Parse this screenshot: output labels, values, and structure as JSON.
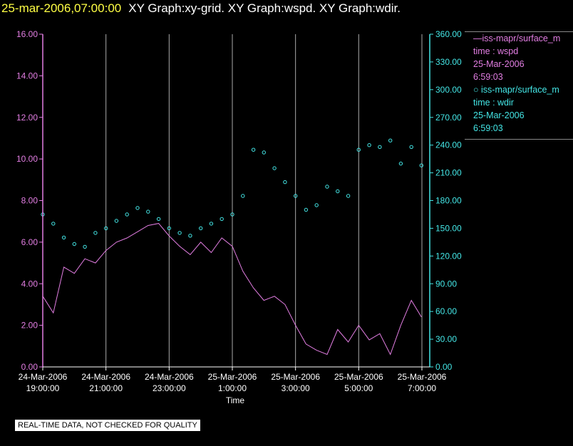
{
  "header": {
    "time": "25-mar-2006,07:00:00",
    "graphs": "XY Graph:xy-grid.  XY Graph:wspd.  XY Graph:wdir."
  },
  "colors": {
    "wspd": "#e37ee3",
    "wdir": "#44e6e6",
    "grid": "#aaaaaa",
    "background": "#000000"
  },
  "legend": {
    "wspd": {
      "series": "iss-mapr/surface_m",
      "field": "time : wspd",
      "date": "25-Mar-2006",
      "time": "6:59:03"
    },
    "wdir": {
      "series": "iss-mapr/surface_m",
      "field": "time : wdir",
      "date": "25-Mar-2006",
      "time": "6:59:03"
    }
  },
  "notice": "REAL-TIME DATA, NOT CHECKED FOR QUALITY",
  "chart_data": {
    "type": "line",
    "xlabel": "Time",
    "x_range": [
      "2006-03-24 19:00",
      "2006-03-25 07:00"
    ],
    "x_ticks": [
      {
        "date": "24-Mar-2006",
        "time": "19:00:00"
      },
      {
        "date": "24-Mar-2006",
        "time": "21:00:00"
      },
      {
        "date": "24-Mar-2006",
        "time": "23:00:00"
      },
      {
        "date": "25-Mar-2006",
        "time": "1:00:00"
      },
      {
        "date": "25-Mar-2006",
        "time": "3:00:00"
      },
      {
        "date": "25-Mar-2006",
        "time": "5:00:00"
      },
      {
        "date": "25-Mar-2006",
        "time": "7:00:00"
      }
    ],
    "left_axis": {
      "ylim": [
        0,
        16
      ],
      "ticks": [
        "0.00",
        "2.00",
        "4.00",
        "6.00",
        "8.00",
        "10.00",
        "12.00",
        "14.00",
        "16.00"
      ]
    },
    "right_axis": {
      "ylim": [
        0,
        360
      ],
      "ticks": [
        "0.00",
        "30.00",
        "60.00",
        "90.00",
        "120.00",
        "150.00",
        "180.00",
        "210.00",
        "240.00",
        "270.00",
        "300.00",
        "330.00",
        "360.00"
      ]
    },
    "grid": "vertical",
    "series": [
      {
        "name": "iss-mapr/surface_m",
        "field": "time : wspd",
        "style": "line",
        "axis": "left",
        "x": [
          "2006-03-24 19:00",
          "2006-03-24 19:20",
          "2006-03-24 19:40",
          "2006-03-24 20:00",
          "2006-03-24 20:20",
          "2006-03-24 20:40",
          "2006-03-24 21:00",
          "2006-03-24 21:20",
          "2006-03-24 21:40",
          "2006-03-24 22:00",
          "2006-03-24 22:20",
          "2006-03-24 22:40",
          "2006-03-24 23:00",
          "2006-03-24 23:20",
          "2006-03-24 23:40",
          "2006-03-25 00:00",
          "2006-03-25 00:20",
          "2006-03-25 00:40",
          "2006-03-25 01:00",
          "2006-03-25 01:20",
          "2006-03-25 01:40",
          "2006-03-25 02:00",
          "2006-03-25 02:20",
          "2006-03-25 02:40",
          "2006-03-25 03:00",
          "2006-03-25 03:20",
          "2006-03-25 03:40",
          "2006-03-25 04:00",
          "2006-03-25 04:20",
          "2006-03-25 04:40",
          "2006-03-25 05:00",
          "2006-03-25 05:20",
          "2006-03-25 05:40",
          "2006-03-25 06:00",
          "2006-03-25 06:20",
          "2006-03-25 06:40",
          "2006-03-25 06:59"
        ],
        "y": [
          3.4,
          2.6,
          4.8,
          4.5,
          5.2,
          5.0,
          5.6,
          6.0,
          6.2,
          6.5,
          6.8,
          6.9,
          6.3,
          5.8,
          5.4,
          6.0,
          5.5,
          6.2,
          5.8,
          4.6,
          3.8,
          3.2,
          3.4,
          3.0,
          2.0,
          1.1,
          0.8,
          0.6,
          1.8,
          1.2,
          2.0,
          1.3,
          1.6,
          0.6,
          2.0,
          3.2,
          2.4
        ]
      },
      {
        "name": "iss-mapr/surface_m",
        "field": "time : wdir",
        "style": "points",
        "axis": "right",
        "x": [
          "2006-03-24 19:00",
          "2006-03-24 19:20",
          "2006-03-24 19:40",
          "2006-03-24 20:00",
          "2006-03-24 20:20",
          "2006-03-24 20:40",
          "2006-03-24 21:00",
          "2006-03-24 21:20",
          "2006-03-24 21:40",
          "2006-03-24 22:00",
          "2006-03-24 22:20",
          "2006-03-24 22:40",
          "2006-03-24 23:00",
          "2006-03-24 23:20",
          "2006-03-24 23:40",
          "2006-03-25 00:00",
          "2006-03-25 00:20",
          "2006-03-25 00:40",
          "2006-03-25 01:00",
          "2006-03-25 01:20",
          "2006-03-25 01:40",
          "2006-03-25 02:00",
          "2006-03-25 02:20",
          "2006-03-25 02:40",
          "2006-03-25 03:00",
          "2006-03-25 03:20",
          "2006-03-25 03:40",
          "2006-03-25 04:00",
          "2006-03-25 04:20",
          "2006-03-25 04:40",
          "2006-03-25 05:00",
          "2006-03-25 05:20",
          "2006-03-25 05:40",
          "2006-03-25 06:00",
          "2006-03-25 06:20",
          "2006-03-25 06:40",
          "2006-03-25 06:59"
        ],
        "y": [
          165,
          155,
          140,
          133,
          130,
          145,
          150,
          158,
          165,
          172,
          168,
          160,
          150,
          145,
          142,
          150,
          155,
          160,
          165,
          185,
          235,
          232,
          215,
          200,
          185,
          170,
          175,
          195,
          190,
          185,
          235,
          240,
          238,
          245,
          220,
          238,
          218
        ]
      }
    ]
  }
}
